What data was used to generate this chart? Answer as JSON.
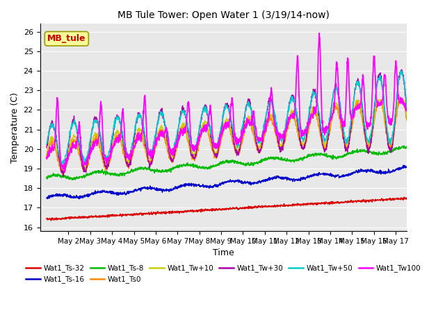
{
  "title": "MB Tule Tower: Open Water 1 (3/19/14-now)",
  "xlabel": "Time",
  "ylabel": "Temperature (C)",
  "ylim": [
    15.8,
    26.4
  ],
  "yticks": [
    16.0,
    17.0,
    18.0,
    19.0,
    20.0,
    21.0,
    22.0,
    23.0,
    24.0,
    25.0,
    26.0
  ],
  "annotation_text": "MB_tule",
  "series_colors": {
    "Wat1_Ts-32": "#dd0000",
    "Wat1_Ts-16": "#0000cc",
    "Wat1_Ts-8": "#00bb00",
    "Wat1_Ts0": "#ff8800",
    "Wat1_Tw+10": "#cccc00",
    "Wat1_Tw+30": "#aa00aa",
    "Wat1_Tw+50": "#00cccc",
    "Wat1_Tw100": "#ff00ff"
  },
  "series_order": [
    "Wat1_Ts-32",
    "Wat1_Ts-16",
    "Wat1_Ts-8",
    "Wat1_Ts0",
    "Wat1_Tw+10",
    "Wat1_Tw+30",
    "Wat1_Tw+50",
    "Wat1_Tw100"
  ],
  "lw": 1.0,
  "lw_tw100": 1.3,
  "background_color": "#e8e8e8",
  "plot_bg": "#ffffff",
  "xtick_positions": [
    1,
    2,
    3,
    4,
    5,
    6,
    7,
    8,
    9,
    10,
    11,
    12,
    13,
    14,
    15,
    16
  ],
  "xtick_labels": [
    "May 2",
    "May 3",
    "May 4",
    "May 5",
    "May 6",
    "May 7",
    "May 8",
    "May 9",
    "May 10",
    "May 11",
    "May 12",
    "May 13",
    "May 14",
    "May 15",
    "May 16",
    "May 17"
  ],
  "figsize": [
    6.4,
    4.8
  ],
  "dpi": 100
}
